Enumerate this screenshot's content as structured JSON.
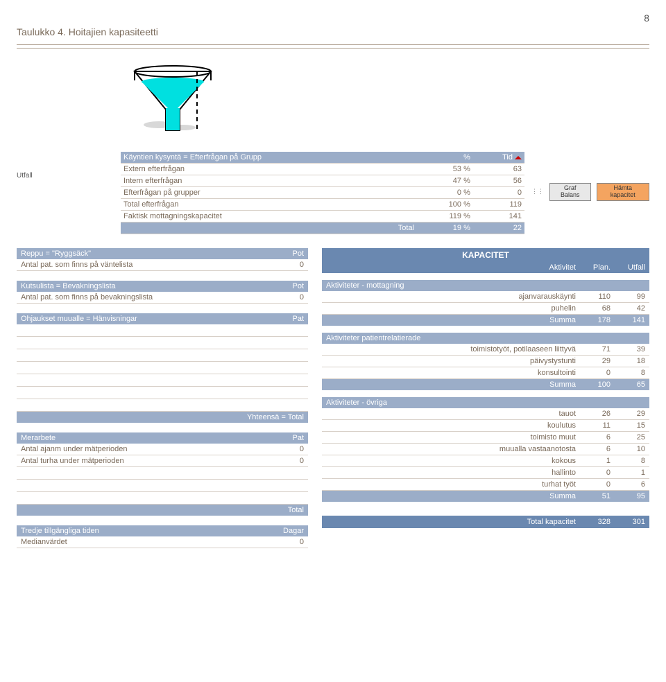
{
  "page_number": "8",
  "title": "Taulukko 4. Hoitajien kapasiteetti",
  "utfall_label": "Utfall",
  "demand": {
    "header": {
      "c1": "Käyntien kysyntä = Efterfrågan på Grupp",
      "c2": "%",
      "c3": "Tid"
    },
    "rows": [
      {
        "c1": "Extern efterfrågan",
        "c2": "53 %",
        "c3": "63"
      },
      {
        "c1": "Intern efterfrågan",
        "c2": "47 %",
        "c3": "56"
      },
      {
        "c1": "Efterfrågan på grupper",
        "c2": "0 %",
        "c3": "0"
      },
      {
        "c1": "Total efterfrågan",
        "c2": "100 %",
        "c3": "119"
      },
      {
        "c1": "Faktisk mottagningskapacitet",
        "c2": "119 %",
        "c3": "141"
      }
    ],
    "total": {
      "c1": "Total",
      "c2": "19 %",
      "c3": "22"
    }
  },
  "buttons": {
    "graf": "Graf Balans",
    "hamta": "Hämta kapacitet"
  },
  "left": {
    "reppu": {
      "h1": "Reppu = \"Ryggsäck\"",
      "h2": "Pot",
      "r1": "Antal pat. som finns på väntelista",
      "v1": "0"
    },
    "kutsu": {
      "h1": "Kutsulista = Bevakningslista",
      "h2": "Pot",
      "r1": "Antal pat. som finns på bevakningslista",
      "v1": "0"
    },
    "ohj": {
      "h1": "Ohjaukset muualle = Hänvisningar",
      "h2": "Pat",
      "total": "Yhteensä = Total"
    },
    "mer": {
      "h1": "Merarbete",
      "h2": "Pat",
      "r1": "Antal ajanm under mätperioden",
      "v1": "0",
      "r2": "Antal turha under mätperioden",
      "v2": "0",
      "total": "Total"
    },
    "tredje": {
      "h1": "Tredje tillgängliga tiden",
      "h2": "Dagar",
      "r1": "Medianvärdet",
      "v1": "0"
    }
  },
  "kap": {
    "title": "KAPACITET",
    "head": {
      "c1": "Aktivitet",
      "c2": "Plan.",
      "c3": "Utfall"
    },
    "g1": {
      "sub": "Aktiviteter - mottagning",
      "rows": [
        {
          "c1": "ajanvarauskäynti",
          "c2": "110",
          "c3": "99"
        },
        {
          "c1": "puhelin",
          "c2": "68",
          "c3": "42"
        }
      ],
      "sum": {
        "c1": "Summa",
        "c2": "178",
        "c3": "141"
      }
    },
    "g2": {
      "sub": "Aktiviteter patientrelatierade",
      "rows": [
        {
          "c1": "toimistotyöt, potilaaseen liittyvä",
          "c2": "71",
          "c3": "39"
        },
        {
          "c1": "päivystystunti",
          "c2": "29",
          "c3": "18"
        },
        {
          "c1": "konsultointi",
          "c2": "0",
          "c3": "8"
        }
      ],
      "sum": {
        "c1": "Summa",
        "c2": "100",
        "c3": "65"
      }
    },
    "g3": {
      "sub": "Aktiviteter - övriga",
      "rows": [
        {
          "c1": "tauot",
          "c2": "26",
          "c3": "29"
        },
        {
          "c1": "koulutus",
          "c2": "11",
          "c3": "15"
        },
        {
          "c1": "toimisto muut",
          "c2": "6",
          "c3": "25"
        },
        {
          "c1": "muualla vastaanotosta",
          "c2": "6",
          "c3": "10"
        },
        {
          "c1": "kokous",
          "c2": "1",
          "c3": "8"
        },
        {
          "c1": "hallinto",
          "c2": "0",
          "c3": "1"
        },
        {
          "c1": "turhat työt",
          "c2": "0",
          "c3": "6"
        }
      ],
      "sum": {
        "c1": "Summa",
        "c2": "51",
        "c3": "95"
      }
    },
    "total": {
      "c1": "Total kapacitet",
      "c2": "328",
      "c3": "301"
    }
  },
  "funnel": {
    "fill": "#00e0e0",
    "outline": "#000",
    "sand": "#d8d8d8",
    "water_level": 0.45
  }
}
